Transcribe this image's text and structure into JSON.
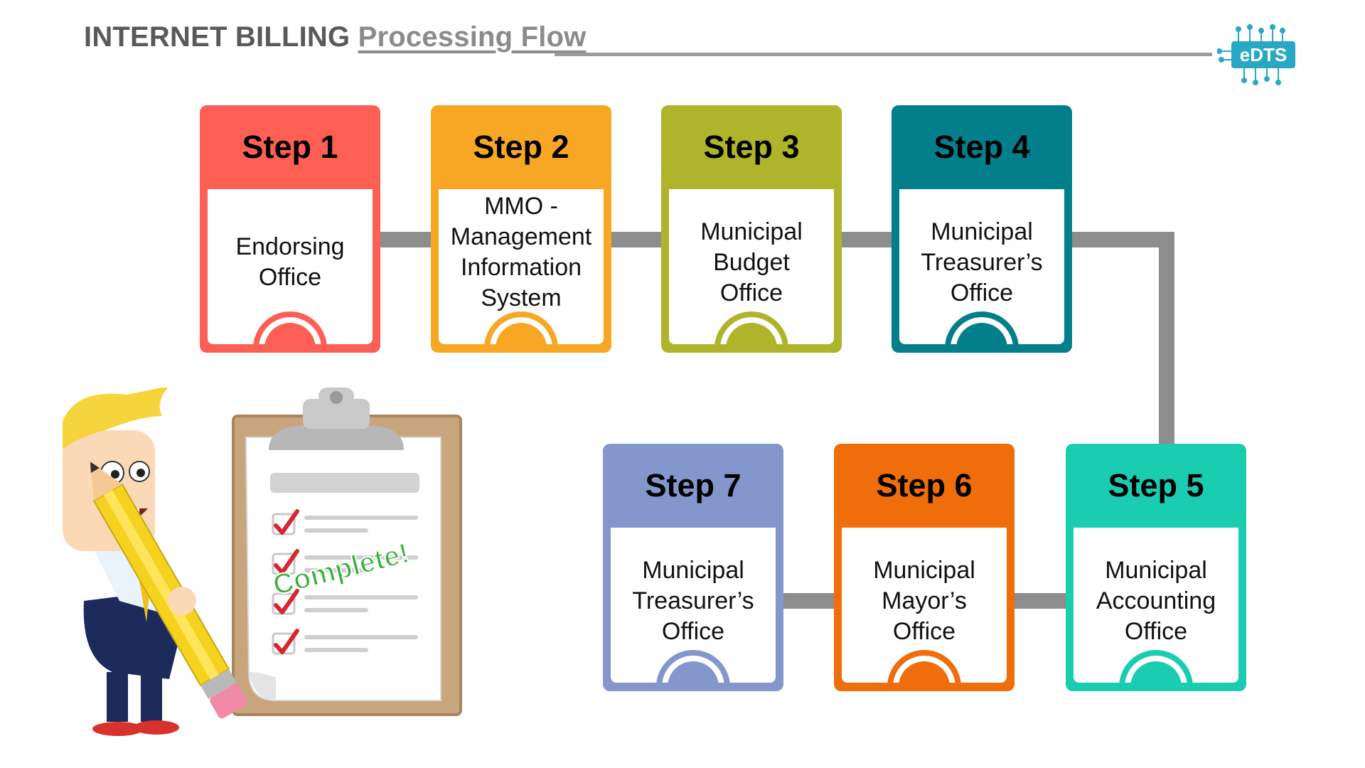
{
  "header": {
    "title_bold": "INTERNET BILLING",
    "title_light": "Processing Flow",
    "logo_text": "eDTS"
  },
  "steps": [
    {
      "heading": "Step 1",
      "label": "Endorsing Office",
      "color": "#fd5f55"
    },
    {
      "heading": "Step 2",
      "label": "MMO - Management Information System",
      "color": "#f8a725"
    },
    {
      "heading": "Step 3",
      "label": "Municipal Budget Office",
      "color": "#afb42a"
    },
    {
      "heading": "Step 4",
      "label": "Municipal Treasurer’s Office",
      "color": "#037f8c"
    },
    {
      "heading": "Step 5",
      "label": "Municipal Accounting Office",
      "color": "#1bcdb0"
    },
    {
      "heading": "Step 6",
      "label": "Municipal Mayor’s Office",
      "color": "#ef6d0a"
    },
    {
      "heading": "Step 7",
      "label": "Municipal Treasurer’s Office",
      "color": "#8497cc"
    }
  ],
  "illustration": {
    "clipboard_text": "Complete!",
    "icon": "man-with-pencil-and-checklist-icon"
  }
}
